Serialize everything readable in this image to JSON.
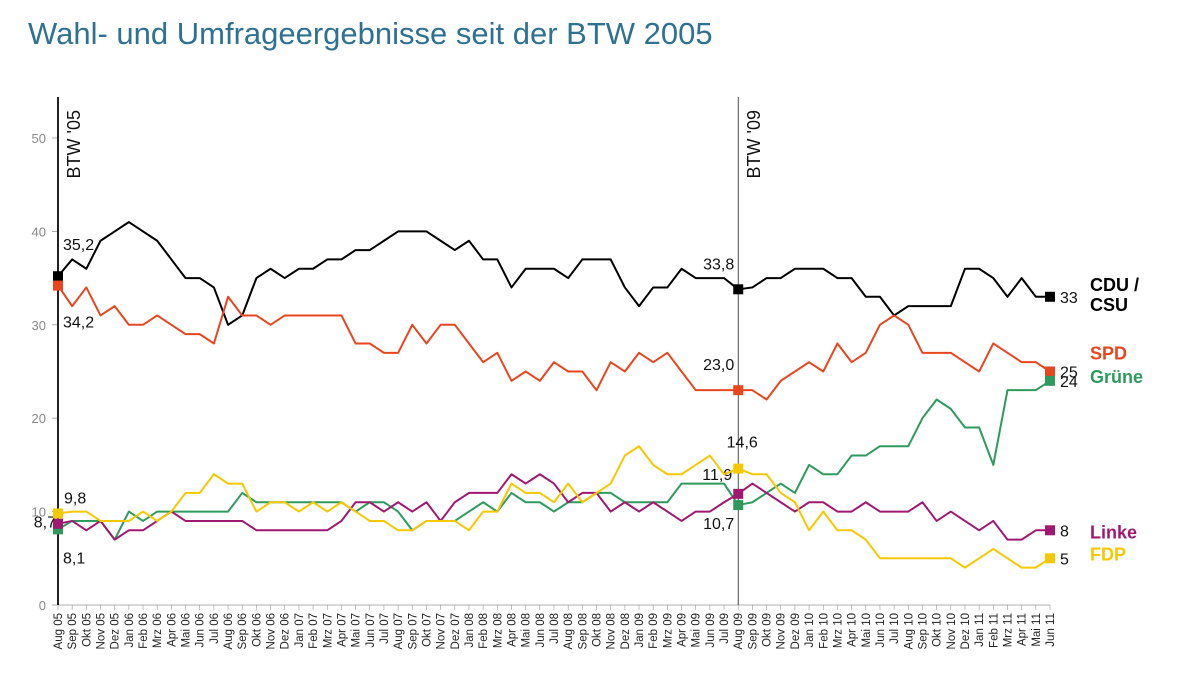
{
  "chart_data": {
    "type": "line",
    "title": "Wahl- und Umfrageergebnisse seit der BTW 2005",
    "categories": [
      "Aug 05",
      "Sep 05",
      "Okt 05",
      "Nov 05",
      "Dez 05",
      "Jan 06",
      "Feb 06",
      "Mrz 06",
      "Apr 06",
      "Mai 06",
      "Jun 06",
      "Jul 06",
      "Aug 06",
      "Sep 06",
      "Okt 06",
      "Nov 06",
      "Dez 06",
      "Jan 07",
      "Feb 07",
      "Mrz 07",
      "Apr 07",
      "Mai 07",
      "Jun 07",
      "Jul 07",
      "Aug 07",
      "Sep 07",
      "Okt 07",
      "Nov 07",
      "Dez 07",
      "Jan 08",
      "Feb 08",
      "Mrz 08",
      "Apr 08",
      "Mai 08",
      "Jun 08",
      "Jul 08",
      "Aug 08",
      "Sep 08",
      "Okt 08",
      "Nov 08",
      "Dez 08",
      "Jan 09",
      "Feb 09",
      "Mrz 09",
      "Apr 09",
      "Mai 09",
      "Jun 09",
      "Jul 09",
      "Aug 09",
      "Sep 09",
      "Okt 09",
      "Nov 09",
      "Dez 09",
      "Jan 10",
      "Feb 10",
      "Mrz 10",
      "Apr 10",
      "Mai 10",
      "Jun 10",
      "Jul 10",
      "Aug 10",
      "Sep 10",
      "Okt 10",
      "Nov 10",
      "Dez 10",
      "Jan 11",
      "Feb 11",
      "Mrz 11",
      "Apr 11",
      "Mai 11",
      "Jun 11"
    ],
    "series": [
      {
        "name": "CDU / CSU",
        "color": "#000000",
        "values": [
          35.2,
          37,
          36,
          39,
          40,
          41,
          40,
          39,
          37,
          35,
          35,
          34,
          30,
          31,
          35,
          36,
          35,
          36,
          36,
          37,
          37,
          38,
          38,
          39,
          40,
          40,
          40,
          39,
          38,
          39,
          37,
          37,
          34,
          36,
          36,
          36,
          35,
          37,
          37,
          37,
          34,
          32,
          34,
          34,
          36,
          35,
          35,
          35,
          33.8,
          34,
          35,
          35,
          36,
          36,
          36,
          35,
          35,
          33,
          33,
          31,
          32,
          32,
          32,
          32,
          36,
          36,
          35,
          33,
          35,
          33,
          33
        ],
        "value_labels": [
          "35,2",
          null,
          null,
          null,
          null,
          null,
          null,
          null,
          null,
          null,
          null,
          null,
          null,
          null,
          null,
          null,
          null,
          null,
          null,
          null,
          null,
          null,
          null,
          null,
          null,
          null,
          null,
          null,
          null,
          null,
          null,
          null,
          null,
          null,
          null,
          null,
          null,
          null,
          null,
          null,
          null,
          null,
          null,
          null,
          null,
          null,
          null,
          null,
          "33,8",
          null,
          null,
          null,
          null,
          null,
          null,
          null,
          null,
          null,
          null,
          null,
          null,
          null,
          null,
          null,
          null,
          null,
          null,
          null,
          null,
          null,
          "33"
        ]
      },
      {
        "name": "SPD",
        "color": "#e8461e",
        "values": [
          34.2,
          32,
          34,
          31,
          32,
          30,
          30,
          31,
          30,
          29,
          29,
          28,
          33,
          31,
          31,
          30,
          31,
          31,
          31,
          31,
          31,
          28,
          28,
          27,
          27,
          30,
          28,
          30,
          30,
          28,
          26,
          27,
          24,
          25,
          24,
          26,
          25,
          25,
          23,
          26,
          25,
          27,
          26,
          27,
          25,
          23,
          23,
          23,
          23.0,
          23,
          22,
          24,
          25,
          26,
          25,
          28,
          26,
          27,
          30,
          31,
          30,
          27,
          27,
          27,
          26,
          25,
          28,
          27,
          26,
          26,
          25
        ],
        "value_labels": [
          "34,2",
          null,
          null,
          null,
          null,
          null,
          null,
          null,
          null,
          null,
          null,
          null,
          null,
          null,
          null,
          null,
          null,
          null,
          null,
          null,
          null,
          null,
          null,
          null,
          null,
          null,
          null,
          null,
          null,
          null,
          null,
          null,
          null,
          null,
          null,
          null,
          null,
          null,
          null,
          null,
          null,
          null,
          null,
          null,
          null,
          null,
          null,
          null,
          "23,0",
          null,
          null,
          null,
          null,
          null,
          null,
          null,
          null,
          null,
          null,
          null,
          null,
          null,
          null,
          null,
          null,
          null,
          null,
          null,
          null,
          null,
          "25"
        ]
      },
      {
        "name": "Grüne",
        "color": "#2e9a5e",
        "values": [
          8.1,
          9,
          9,
          9,
          7,
          10,
          9,
          10,
          10,
          10,
          10,
          10,
          10,
          12,
          11,
          11,
          11,
          11,
          11,
          11,
          11,
          10,
          11,
          11,
          10,
          8,
          9,
          9,
          9,
          10,
          11,
          10,
          12,
          11,
          11,
          10,
          11,
          11,
          12,
          12,
          11,
          11,
          11,
          11,
          13,
          13,
          13,
          13,
          10.7,
          11,
          12,
          13,
          12,
          15,
          14,
          14,
          16,
          16,
          17,
          17,
          17,
          20,
          22,
          21,
          19,
          19,
          15,
          23,
          23,
          23,
          24
        ],
        "value_labels": [
          "8,1",
          null,
          null,
          null,
          null,
          null,
          null,
          null,
          null,
          null,
          null,
          null,
          null,
          null,
          null,
          null,
          null,
          null,
          null,
          null,
          null,
          null,
          null,
          null,
          null,
          null,
          null,
          null,
          null,
          null,
          null,
          null,
          null,
          null,
          null,
          null,
          null,
          null,
          null,
          null,
          null,
          null,
          null,
          null,
          null,
          null,
          null,
          null,
          "10,7",
          null,
          null,
          null,
          null,
          null,
          null,
          null,
          null,
          null,
          null,
          null,
          null,
          null,
          null,
          null,
          null,
          null,
          null,
          null,
          null,
          null,
          "24"
        ]
      },
      {
        "name": "Linke",
        "color": "#a0186f",
        "values": [
          8.7,
          9,
          8,
          9,
          7,
          8,
          8,
          9,
          10,
          9,
          9,
          9,
          9,
          9,
          8,
          8,
          8,
          8,
          8,
          8,
          9,
          11,
          11,
          10,
          11,
          10,
          11,
          9,
          11,
          12,
          12,
          12,
          14,
          13,
          14,
          13,
          11,
          12,
          12,
          10,
          11,
          10,
          11,
          10,
          9,
          10,
          10,
          11,
          11.9,
          13,
          12,
          11,
          10,
          11,
          11,
          10,
          10,
          11,
          10,
          10,
          10,
          11,
          9,
          10,
          9,
          8,
          9,
          7,
          7,
          8,
          8
        ],
        "value_labels": [
          "8,7",
          null,
          null,
          null,
          null,
          null,
          null,
          null,
          null,
          null,
          null,
          null,
          null,
          null,
          null,
          null,
          null,
          null,
          null,
          null,
          null,
          null,
          null,
          null,
          null,
          null,
          null,
          null,
          null,
          null,
          null,
          null,
          null,
          null,
          null,
          null,
          null,
          null,
          null,
          null,
          null,
          null,
          null,
          null,
          null,
          null,
          null,
          null,
          "11,9",
          null,
          null,
          null,
          null,
          null,
          null,
          null,
          null,
          null,
          null,
          null,
          null,
          null,
          null,
          null,
          null,
          null,
          null,
          null,
          null,
          null,
          "8"
        ]
      },
      {
        "name": "FDP",
        "color": "#f5c800",
        "values": [
          9.8,
          10,
          10,
          9,
          9,
          9,
          10,
          9,
          10,
          12,
          12,
          14,
          13,
          13,
          10,
          11,
          11,
          10,
          11,
          10,
          11,
          10,
          9,
          9,
          8,
          8,
          9,
          9,
          9,
          8,
          10,
          10,
          13,
          12,
          12,
          11,
          13,
          11,
          12,
          13,
          16,
          17,
          15,
          14,
          14,
          15,
          16,
          14,
          14.6,
          14,
          14,
          12,
          11,
          8,
          10,
          8,
          8,
          7,
          5,
          5,
          5,
          5,
          5,
          5,
          4,
          5,
          6,
          5,
          4,
          4,
          5
        ],
        "value_labels": [
          "9,8",
          null,
          null,
          null,
          null,
          null,
          null,
          null,
          null,
          null,
          null,
          null,
          null,
          null,
          null,
          null,
          null,
          null,
          null,
          null,
          null,
          null,
          null,
          null,
          null,
          null,
          null,
          null,
          null,
          null,
          null,
          null,
          null,
          null,
          null,
          null,
          null,
          null,
          null,
          null,
          null,
          null,
          null,
          null,
          null,
          null,
          null,
          null,
          "14,6",
          null,
          null,
          null,
          null,
          null,
          null,
          null,
          null,
          null,
          null,
          null,
          null,
          null,
          null,
          null,
          null,
          null,
          null,
          null,
          null,
          null,
          "5"
        ]
      }
    ],
    "events": [
      {
        "label": "BTW '05",
        "x": "Aug 05"
      },
      {
        "label": "BTW '09",
        "x": "Aug 09"
      }
    ],
    "ylim": [
      0,
      50
    ],
    "yticks": [
      0,
      10,
      20,
      30,
      40,
      50
    ],
    "grid": false
  }
}
